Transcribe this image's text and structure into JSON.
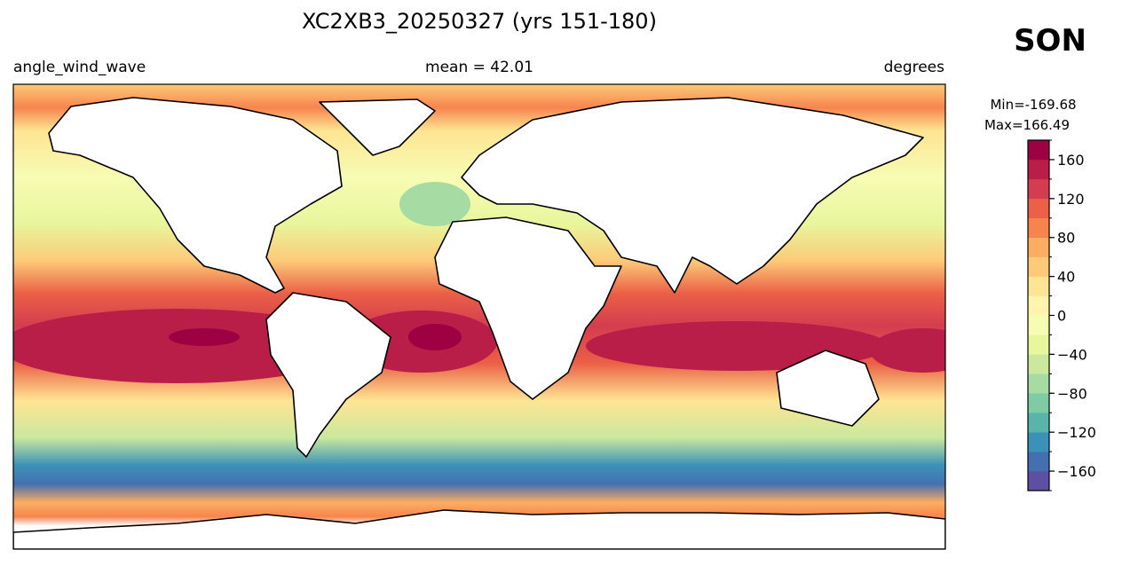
{
  "map": {
    "title": "XC2XB3_20250327 (yrs 151-180)",
    "left_label": "angle_wind_wave",
    "center_label": "mean = 42.01",
    "right_label": "degrees",
    "season": "SON",
    "min_text": "Min=-169.68",
    "max_text": "Max=166.49",
    "colorbar": {
      "lim": [
        -180,
        180
      ],
      "levels": [
        -180,
        -160,
        -140,
        -120,
        -100,
        -80,
        -60,
        -40,
        -20,
        0,
        20,
        40,
        60,
        80,
        100,
        120,
        140,
        160,
        180
      ],
      "colors": [
        "#5e4fa2",
        "#4470b1",
        "#3b92b8",
        "#59b4aa",
        "#7ecba4",
        "#a6dba4",
        "#cae99d",
        "#e8f69c",
        "#f7fcb3",
        "#fff5ae",
        "#fee593",
        "#fdca79",
        "#fdad60",
        "#f7844e",
        "#eb6046",
        "#d43d4f",
        "#b91e48",
        "#9e0142"
      ],
      "ticks": [
        {
          "value": -160,
          "label": "−160"
        },
        {
          "value": -120,
          "label": "−120"
        },
        {
          "value": -80,
          "label": "−80"
        },
        {
          "value": -40,
          "label": "−40"
        },
        0,
        40,
        80,
        120,
        160
      ]
    }
  }
}
